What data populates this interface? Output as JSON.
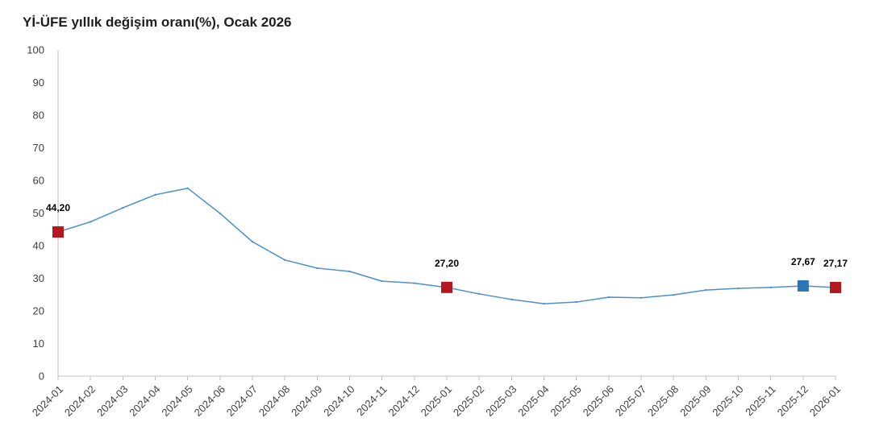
{
  "chart_data": {
    "type": "line",
    "title": "Yİ-ÜFE yıllık değişim oranı(%), Ocak 2026",
    "ylim": [
      0,
      100
    ],
    "yticks": [
      0,
      10,
      20,
      30,
      40,
      50,
      60,
      70,
      80,
      90,
      100
    ],
    "grid": false,
    "categories": [
      "2024-01",
      "2024-02",
      "2024-03",
      "2024-04",
      "2024-05",
      "2024-06",
      "2024-07",
      "2024-08",
      "2024-09",
      "2024-10",
      "2024-11",
      "2024-12",
      "2025-01",
      "2025-02",
      "2025-03",
      "2025-04",
      "2025-05",
      "2025-06",
      "2025-07",
      "2025-08",
      "2025-09",
      "2025-10",
      "2025-11",
      "2025-12",
      "2026-01"
    ],
    "series": [
      {
        "color": "#4A90CC",
        "values": [
          44.2,
          47.3,
          51.6,
          55.6,
          57.6,
          49.9,
          41.2,
          35.6,
          33.1,
          32.1,
          29.1,
          28.5,
          27.2,
          25.2,
          23.5,
          22.2,
          22.7,
          24.2,
          24.0,
          24.9,
          26.4,
          26.9,
          27.2,
          27.67,
          27.17
        ]
      }
    ],
    "annotations": [
      {
        "point_index": 0,
        "value": 44.2,
        "label": "44,20",
        "marker_color": "#B5171F"
      },
      {
        "point_index": 12,
        "value": 27.2,
        "label": "27,20",
        "marker_color": "#B5171F"
      },
      {
        "point_index": 23,
        "value": 27.67,
        "label": "27,67",
        "marker_color": "#2E75B6"
      },
      {
        "point_index": 24,
        "value": 27.17,
        "label": "27,17",
        "marker_color": "#B5171F"
      }
    ],
    "colors": {
      "axis": "#BFBFBF",
      "tick_text": "#404040",
      "data_label": "#000000"
    }
  }
}
